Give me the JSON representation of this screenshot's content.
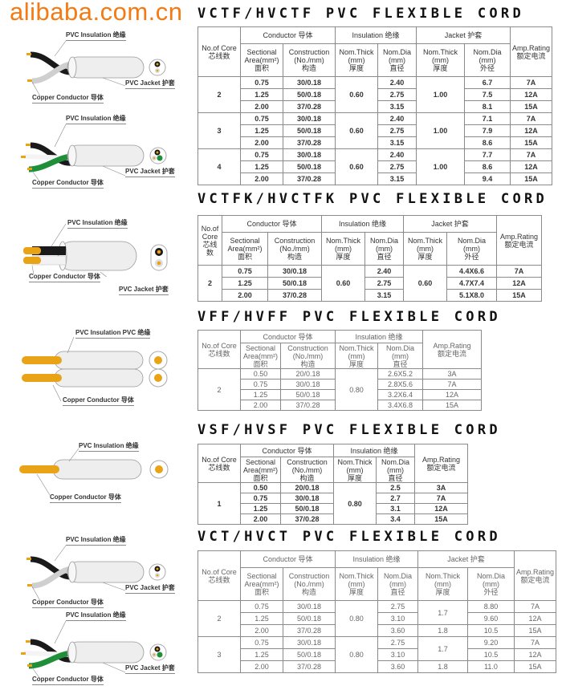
{
  "sections": [
    {
      "title": "VCTF/HVCTF PVC FLEXIBLE CORD",
      "has_jacket": true,
      "style": "bold",
      "labels": {
        "insulation": "PVC Insulation 绝缘",
        "conductor": "Copper Conductor 导体",
        "jacket": "PVC Jacket 护套"
      },
      "groups": [
        {
          "core": "2",
          "ins_thick": "0.60",
          "jacket_thick": [
            {
              "value": "1.00",
              "span": 3
            }
          ],
          "rows": [
            [
              "0.75",
              "30/0.18",
              "2.40",
              "6.7",
              "7A"
            ],
            [
              "1.25",
              "50/0.18",
              "2.75",
              "7.5",
              "12A"
            ],
            [
              "2.00",
              "37/0.28",
              "3.15",
              "8.1",
              "15A"
            ]
          ]
        },
        {
          "core": "3",
          "ins_thick": "0.60",
          "jacket_thick": [
            {
              "value": "1.00",
              "span": 3
            }
          ],
          "rows": [
            [
              "0.75",
              "30/0.18",
              "2.40",
              "7.1",
              "7A"
            ],
            [
              "1.25",
              "50/0.18",
              "2.75",
              "7.9",
              "12A"
            ],
            [
              "2.00",
              "37/0.28",
              "3.15",
              "8.6",
              "15A"
            ]
          ]
        },
        {
          "core": "4",
          "ins_thick": "0.60",
          "jacket_thick": [
            {
              "value": "1.00",
              "span": 3
            }
          ],
          "rows": [
            [
              "0.75",
              "30/0.18",
              "2.40",
              "7.7",
              "7A"
            ],
            [
              "1.25",
              "50/0.18",
              "2.75",
              "8.6",
              "12A"
            ],
            [
              "2.00",
              "37/0.28",
              "3.15",
              "9.4",
              "15A"
            ]
          ]
        }
      ]
    },
    {
      "title": "VCTFK/HVCTFK PVC FLEXIBLE CORD",
      "has_jacket": true,
      "style": "bold",
      "core_header_split": true,
      "labels": {
        "insulation": "PVC Insulation 绝缘",
        "conductor": "Copper Conductor 导体",
        "jacket": "PVC Jacket 护套"
      },
      "groups": [
        {
          "core": "2",
          "ins_thick": "0.60",
          "jacket_thick": [
            {
              "value": "0.60",
              "span": 3
            }
          ],
          "rows": [
            [
              "0.75",
              "30/0.18",
              "2.40",
              "4.4X6.6",
              "7A"
            ],
            [
              "1.25",
              "50/0.18",
              "2.75",
              "4.7X7.4",
              "12A"
            ],
            [
              "2.00",
              "37/0.28",
              "3.15",
              "5.1X8.0",
              "15A"
            ]
          ]
        }
      ]
    },
    {
      "title": "VFF/HVFF PVC FLEXIBLE CORD",
      "has_jacket": false,
      "style": "light",
      "labels": {
        "insulation": "PVC Insulation PVC 绝缘",
        "conductor": "Copper Conductor 导体"
      },
      "groups": [
        {
          "core": "2",
          "ins_thick": "0.80",
          "rows": [
            [
              "0.50",
              "20/0.18",
              "2.6X5.2",
              "3A"
            ],
            [
              "0.75",
              "30/0.18",
              "2.8X5.6",
              "7A"
            ],
            [
              "1.25",
              "50/0.18",
              "3.2X6.4",
              "12A"
            ],
            [
              "2.00",
              "37/0.28",
              "3.4X6.8",
              "15A"
            ]
          ]
        }
      ]
    },
    {
      "title": "VSF/HVSF PVC FLEXIBLE CORD",
      "has_jacket": false,
      "style": "bold",
      "labels": {
        "insulation": "PVC Insulation 绝缘",
        "conductor": "Copper Conductor 导体"
      },
      "groups": [
        {
          "core": "1",
          "ins_thick": "0.80",
          "rows": [
            [
              "0.50",
              "20/0.18",
              "2.5",
              "3A"
            ],
            [
              "0.75",
              "30/0.18",
              "2.7",
              "7A"
            ],
            [
              "1.25",
              "50/0.18",
              "3.1",
              "12A"
            ],
            [
              "2.00",
              "37/0.28",
              "3.4",
              "15A"
            ]
          ]
        }
      ]
    },
    {
      "title": "VCT/HVCT PVC FLEXIBLE CORD",
      "has_jacket": true,
      "style": "light",
      "labels": {
        "insulation": "PVC Insulation 绝缘",
        "conductor": "Copper Conductor 导体",
        "jacket": "PVC Jacket 护套"
      },
      "groups": [
        {
          "core": "2",
          "ins_thick": "0.80",
          "jacket_thick": [
            {
              "value": "1.7",
              "span": 2
            },
            {
              "value": "1.8",
              "span": 1
            }
          ],
          "rows": [
            [
              "0.75",
              "30/0.18",
              "2.75",
              "8.80",
              "7A"
            ],
            [
              "1.25",
              "50/0.18",
              "3.10",
              "9.60",
              "12A"
            ],
            [
              "2.00",
              "37/0.28",
              "3.60",
              "10.5",
              "15A"
            ]
          ]
        },
        {
          "core": "3",
          "ins_thick": "0.80",
          "jacket_thick": [
            {
              "value": "1.7",
              "span": 2
            },
            {
              "value": "1.8",
              "span": 1
            }
          ],
          "rows": [
            [
              "0.75",
              "30/0.18",
              "2.75",
              "9.20",
              "7A"
            ],
            [
              "1.25",
              "50/0.18",
              "3.10",
              "10.5",
              "12A"
            ],
            [
              "2.00",
              "37/0.28",
              "3.60",
              "11.0",
              "15A"
            ]
          ]
        }
      ]
    }
  ],
  "headers": {
    "core": "No.of Core",
    "core_split": [
      "No.of",
      "Core"
    ],
    "core_cn": "芯线数",
    "core_cn_split": [
      "芯线",
      "数"
    ],
    "conductor": "Conductor  导体",
    "insulation": "Insulation 绝缘",
    "jacket": "Jacket 护套",
    "area": [
      "Sectional",
      "Area(mm²)",
      "面积"
    ],
    "construction": [
      "Construction",
      "(No./mm)",
      "构造"
    ],
    "ins_thick": [
      "Nom.Thick",
      "(mm)",
      "厚度"
    ],
    "ins_dia": [
      "Nom.Dia",
      "(mm)",
      "直径"
    ],
    "jk_thick": [
      "Nom.Thick",
      "(mm)",
      "厚度"
    ],
    "jk_dia": [
      "Nom.Dia",
      "(mm)",
      "外径"
    ],
    "amp": [
      "Amp.Rating",
      "额定电流"
    ]
  },
  "watermark": "alibaba.com.cn",
  "colors": {
    "copper": "#e8a317",
    "jacket": "#eeeeee",
    "black_wire": "#1a1a1a",
    "green_wire": "#1f8f3a",
    "watermark": "#f47a14"
  }
}
